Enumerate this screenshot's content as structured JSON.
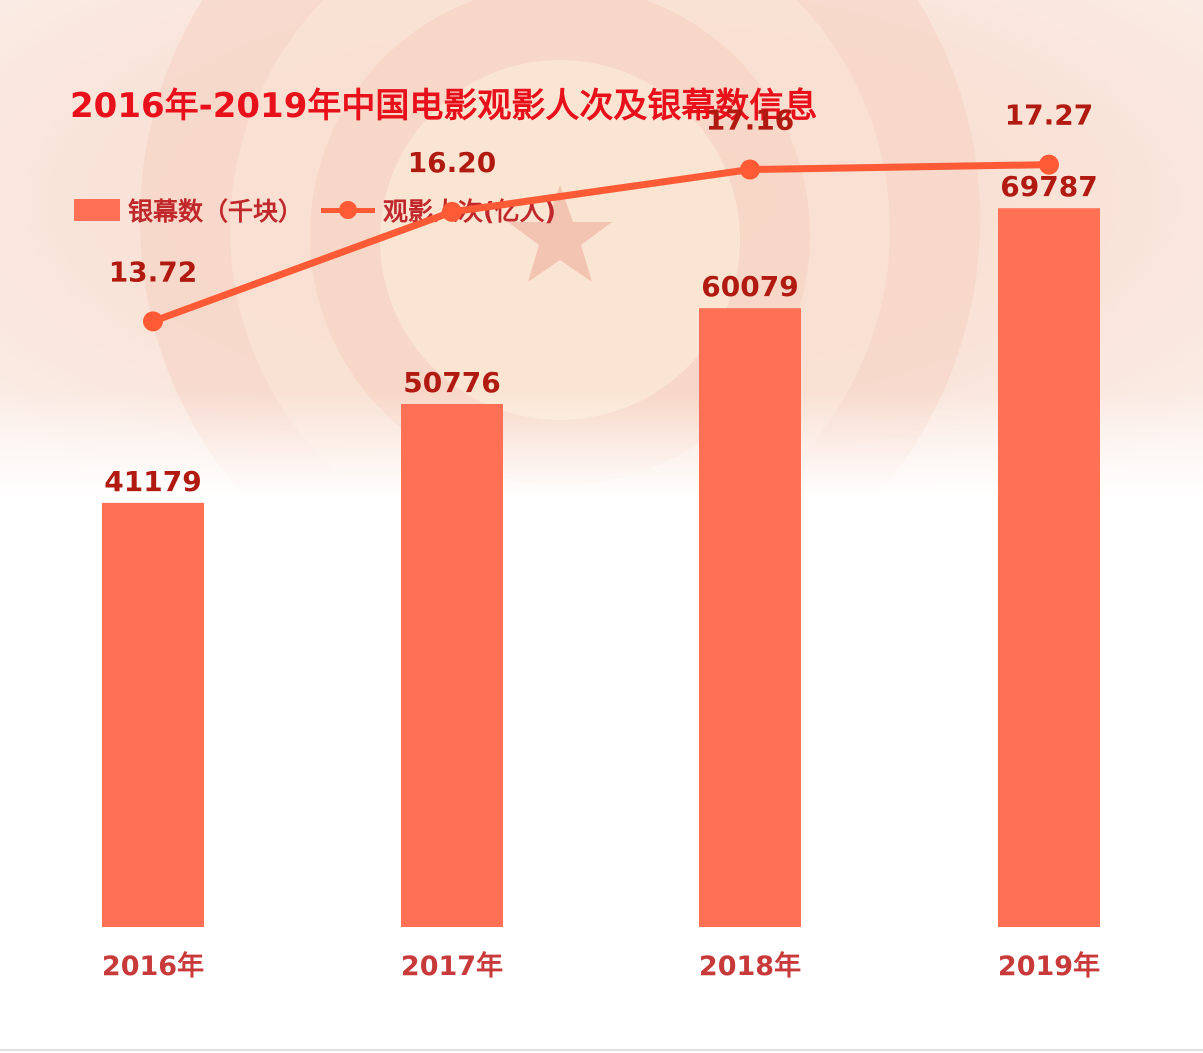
{
  "title": "2016年-2019年中国电影观影人次及银幕数信息",
  "legend": {
    "bar_label": "银幕数（千块）",
    "line_label": "观影人次(亿人)"
  },
  "colors": {
    "title": "#e8101a",
    "bar": "#ff7055",
    "line": "#ff5a36",
    "label": "#b01a10",
    "axis_label": "#c83a3a"
  },
  "chart_data": {
    "type": "bar",
    "categories": [
      "2016年",
      "2017年",
      "2018年",
      "2019年"
    ],
    "series": [
      {
        "name": "银幕数（千块）",
        "type": "bar",
        "values": [
          41179,
          50776,
          60079,
          69787
        ],
        "labels": [
          "41179",
          "50776",
          "60079",
          "69787"
        ]
      },
      {
        "name": "观影人次(亿人)",
        "type": "line",
        "values": [
          13.72,
          16.2,
          17.16,
          17.27
        ],
        "labels": [
          "13.72",
          "16.20",
          "17.16",
          "17.27"
        ]
      }
    ],
    "y_bar_range": [
      0,
      90000
    ],
    "y_line_range": [
      0,
      21
    ],
    "grid": false,
    "legend_position": "top-left"
  }
}
